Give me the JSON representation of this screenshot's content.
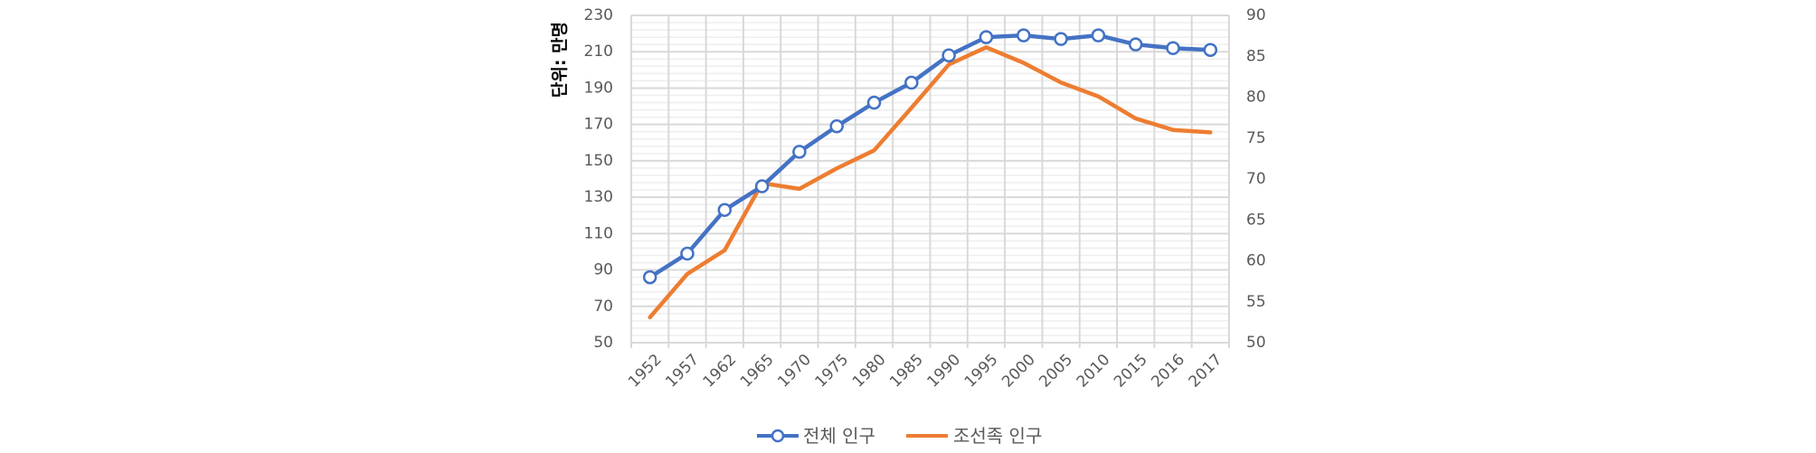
{
  "chart_data": {
    "type": "line",
    "title": "",
    "ylabel": "단위: 만명",
    "xlabel": "",
    "categories": [
      "1952",
      "1957",
      "1962",
      "1965",
      "1970",
      "1975",
      "1980",
      "1985",
      "1990",
      "1995",
      "2000",
      "2005",
      "2010",
      "2015",
      "2016",
      "2017"
    ],
    "series": [
      {
        "name": "전체 인구",
        "axis": "left",
        "color": "#4472C4",
        "marker": "circle-hollow",
        "values": [
          86,
          99,
          123,
          136,
          155,
          169,
          182,
          193,
          208,
          218,
          219,
          217,
          219,
          214,
          212,
          211
        ]
      },
      {
        "name": "조선족 인구",
        "axis": "right",
        "color": "#ED7D31",
        "marker": "none",
        "values": [
          53.1,
          58.4,
          61.3,
          69.5,
          68.8,
          71.3,
          73.5,
          78.7,
          84.0,
          86.1,
          84.2,
          81.8,
          80.1,
          77.4,
          76.0,
          75.7
        ]
      }
    ],
    "y_left": {
      "min": 50,
      "max": 230,
      "step": 20,
      "ticks": [
        "230",
        "210",
        "190",
        "170",
        "150",
        "130",
        "110",
        "90",
        "70",
        "50"
      ]
    },
    "y_right": {
      "min": 50,
      "max": 90,
      "step": 5,
      "ticks": [
        "90",
        "85",
        "80",
        "75",
        "70",
        "65",
        "60",
        "55",
        "50"
      ]
    },
    "grid": {
      "major": true,
      "minor": true,
      "vertical": true
    },
    "legend_position": "bottom",
    "x_label_rotation": -45
  },
  "legend": {
    "items": [
      {
        "label": "전체 인구",
        "color": "#4472C4",
        "marker": "circle-hollow"
      },
      {
        "label": "조선족 인구",
        "color": "#ED7D31",
        "marker": "none"
      }
    ]
  },
  "colors": {
    "grid_major": "#D9D9D9",
    "grid_minor": "#EEEEEE",
    "axis_text": "#595959",
    "title_text": "#000000",
    "background": "#FFFFFF"
  }
}
